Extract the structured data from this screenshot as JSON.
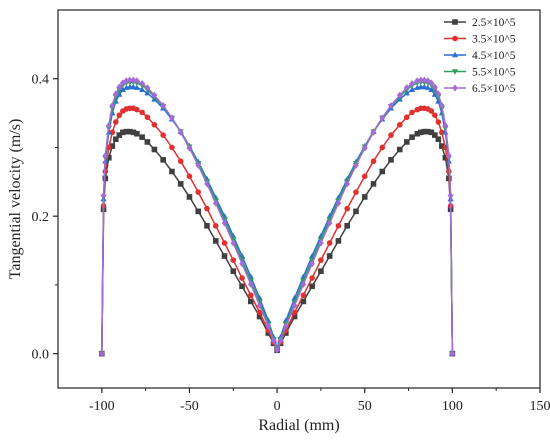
{
  "chart_data": {
    "type": "line",
    "title": "",
    "xlabel": "Radial (mm)",
    "ylabel": "Tangential velocity (m/s)",
    "xlim": [
      -125,
      150
    ],
    "ylim": [
      -0.05,
      0.5
    ],
    "xticks": [
      -100,
      -50,
      0,
      50,
      100,
      150
    ],
    "yticks": [
      0.0,
      0.2,
      0.4
    ],
    "xtick_labels": [
      "-100",
      "-50",
      "0",
      "50",
      "100",
      "150"
    ],
    "ytick_labels": [
      "0.0",
      "0.2",
      "0.4"
    ],
    "grid": false,
    "legend_position": "top-right",
    "x": [
      -100,
      -99,
      -98,
      -96,
      -94,
      -92,
      -90,
      -88,
      -86,
      -84,
      -82,
      -80,
      -77,
      -74,
      -70,
      -65,
      -60,
      -55,
      -50,
      -45,
      -40,
      -35,
      -30,
      -25,
      -20,
      -15,
      -10,
      -5,
      -2,
      0,
      2,
      5,
      10,
      15,
      20,
      25,
      30,
      35,
      40,
      45,
      50,
      55,
      60,
      65,
      70,
      74,
      77,
      80,
      82,
      84,
      86,
      88,
      90,
      92,
      94,
      96,
      98,
      99,
      100
    ],
    "series": [
      {
        "name": "2.5×10^5",
        "color": "#404040",
        "marker": "square",
        "values": [
          0.0,
          0.21,
          0.255,
          0.285,
          0.302,
          0.312,
          0.318,
          0.322,
          0.323,
          0.323,
          0.322,
          0.32,
          0.315,
          0.308,
          0.297,
          0.282,
          0.265,
          0.247,
          0.228,
          0.207,
          0.186,
          0.164,
          0.142,
          0.12,
          0.098,
          0.076,
          0.054,
          0.03,
          0.015,
          0.005,
          0.015,
          0.03,
          0.054,
          0.076,
          0.098,
          0.12,
          0.142,
          0.164,
          0.186,
          0.207,
          0.228,
          0.247,
          0.265,
          0.282,
          0.297,
          0.308,
          0.315,
          0.32,
          0.322,
          0.323,
          0.323,
          0.322,
          0.318,
          0.312,
          0.302,
          0.285,
          0.255,
          0.21,
          0.0
        ]
      },
      {
        "name": "3.5×10^5",
        "color": "#e03030",
        "marker": "circle",
        "values": [
          0.0,
          0.215,
          0.265,
          0.3,
          0.322,
          0.337,
          0.347,
          0.353,
          0.356,
          0.357,
          0.357,
          0.355,
          0.351,
          0.344,
          0.333,
          0.318,
          0.3,
          0.28,
          0.258,
          0.235,
          0.211,
          0.186,
          0.161,
          0.136,
          0.11,
          0.085,
          0.06,
          0.034,
          0.017,
          0.006,
          0.017,
          0.034,
          0.06,
          0.085,
          0.11,
          0.136,
          0.161,
          0.186,
          0.211,
          0.235,
          0.258,
          0.28,
          0.3,
          0.318,
          0.333,
          0.344,
          0.351,
          0.355,
          0.357,
          0.357,
          0.356,
          0.353,
          0.347,
          0.337,
          0.322,
          0.3,
          0.265,
          0.215,
          0.0
        ]
      },
      {
        "name": "4.5×10^5",
        "color": "#2a6fd6",
        "marker": "triangle-up",
        "values": [
          0.0,
          0.225,
          0.28,
          0.322,
          0.35,
          0.367,
          0.377,
          0.384,
          0.387,
          0.388,
          0.388,
          0.387,
          0.384,
          0.379,
          0.37,
          0.357,
          0.341,
          0.323,
          0.302,
          0.279,
          0.254,
          0.227,
          0.2,
          0.171,
          0.142,
          0.112,
          0.081,
          0.048,
          0.024,
          0.008,
          0.024,
          0.048,
          0.081,
          0.112,
          0.142,
          0.171,
          0.2,
          0.227,
          0.254,
          0.279,
          0.302,
          0.323,
          0.341,
          0.357,
          0.37,
          0.379,
          0.384,
          0.387,
          0.388,
          0.388,
          0.387,
          0.384,
          0.377,
          0.367,
          0.35,
          0.322,
          0.28,
          0.225,
          0.0
        ]
      },
      {
        "name": "5.5×10^5",
        "color": "#2e9e5e",
        "marker": "triangle-down",
        "values": [
          0.0,
          0.228,
          0.285,
          0.328,
          0.357,
          0.374,
          0.384,
          0.391,
          0.394,
          0.395,
          0.395,
          0.394,
          0.39,
          0.384,
          0.374,
          0.36,
          0.343,
          0.323,
          0.301,
          0.277,
          0.251,
          0.223,
          0.195,
          0.166,
          0.136,
          0.106,
          0.075,
          0.043,
          0.021,
          0.006,
          0.021,
          0.043,
          0.075,
          0.106,
          0.136,
          0.166,
          0.195,
          0.223,
          0.251,
          0.277,
          0.301,
          0.323,
          0.343,
          0.36,
          0.374,
          0.384,
          0.39,
          0.394,
          0.395,
          0.395,
          0.394,
          0.391,
          0.384,
          0.374,
          0.357,
          0.328,
          0.285,
          0.228,
          0.0
        ]
      },
      {
        "name": "6.5×10^5",
        "color": "#a46ad6",
        "marker": "diamond",
        "values": [
          0.0,
          0.23,
          0.288,
          0.332,
          0.361,
          0.378,
          0.388,
          0.394,
          0.397,
          0.398,
          0.398,
          0.397,
          0.393,
          0.387,
          0.376,
          0.361,
          0.343,
          0.322,
          0.299,
          0.274,
          0.247,
          0.219,
          0.19,
          0.161,
          0.131,
          0.101,
          0.07,
          0.04,
          0.019,
          0.005,
          0.019,
          0.04,
          0.07,
          0.101,
          0.131,
          0.161,
          0.19,
          0.219,
          0.247,
          0.274,
          0.299,
          0.322,
          0.343,
          0.361,
          0.376,
          0.387,
          0.393,
          0.397,
          0.398,
          0.398,
          0.397,
          0.394,
          0.388,
          0.378,
          0.361,
          0.332,
          0.288,
          0.23,
          0.0
        ]
      }
    ]
  }
}
